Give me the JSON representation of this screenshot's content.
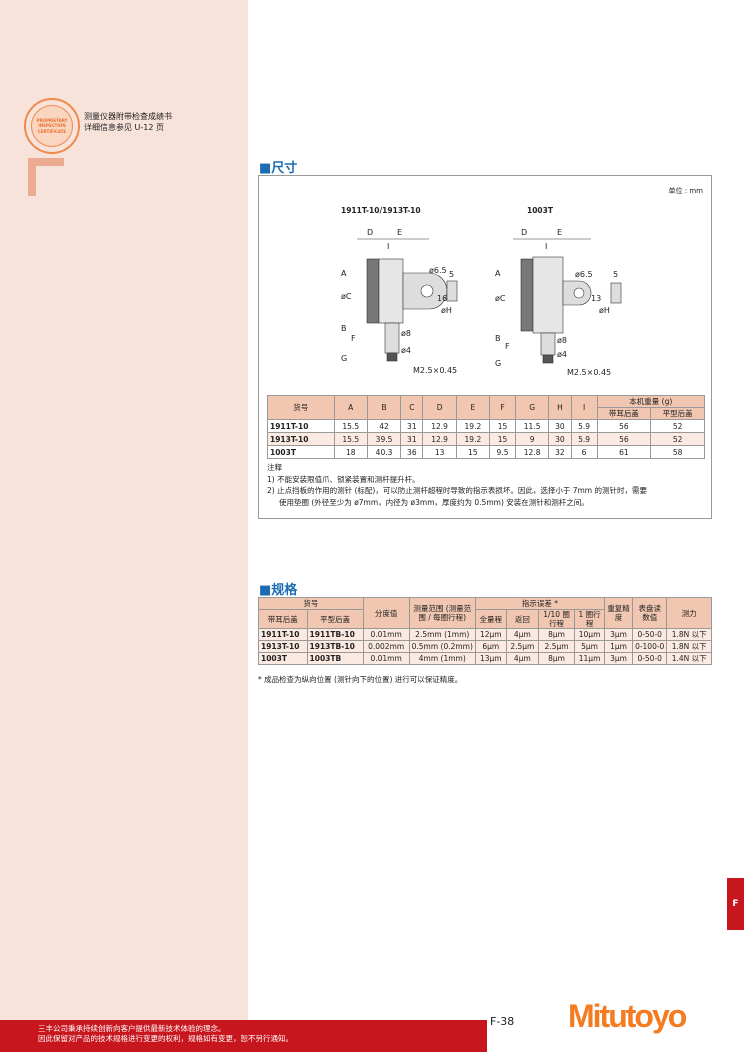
{
  "stamp": {
    "text": "PROPRIETARY INSPECTION CERTIFICATE",
    "line1": "测量仪器附带检查成绩书",
    "line2": "详细信息参见 U-12 页"
  },
  "dimensions": {
    "title": "■尺寸",
    "unit": "单位 : mm",
    "drawing1": {
      "title": "1911T-10/1913T-10",
      "labels": {
        "D": "D",
        "E": "E",
        "I": "I",
        "A": "A",
        "B": "B",
        "C": "øC",
        "F": "F",
        "G": "G",
        "H": "øH",
        "hole": "ø6.5",
        "h": "16",
        "w": "5",
        "stem": "ø8",
        "tip": "ø4",
        "thread": "M2.5×0.45"
      }
    },
    "drawing2": {
      "title": "1003T",
      "labels": {
        "D": "D",
        "E": "E",
        "I": "I",
        "A": "A",
        "B": "B",
        "C": "øC",
        "F": "F",
        "G": "G",
        "H": "øH",
        "hole": "ø6.5",
        "h": "13",
        "w": "5",
        "stem": "ø8",
        "tip": "ø4",
        "thread": "M2.5×0.45"
      }
    },
    "table": {
      "headers": [
        "货号",
        "A",
        "B",
        "C",
        "D",
        "E",
        "F",
        "G",
        "H",
        "I"
      ],
      "weight_header": "本机重量 (g)",
      "weight_sub": [
        "带耳后盖",
        "平型后盖"
      ],
      "rows": [
        [
          "1911T-10",
          "15.5",
          "42",
          "31",
          "12.9",
          "19.2",
          "15",
          "11.5",
          "30",
          "5.9",
          "56",
          "52"
        ],
        [
          "1913T-10",
          "15.5",
          "39.5",
          "31",
          "12.9",
          "19.2",
          "15",
          "9",
          "30",
          "5.9",
          "56",
          "52"
        ],
        [
          "1003T",
          "18",
          "40.3",
          "36",
          "13",
          "15",
          "9.5",
          "12.8",
          "32",
          "6",
          "61",
          "58"
        ]
      ]
    },
    "notes": {
      "title": "注释",
      "items": [
        "1) 不能安装限值爪、锁紧装置和测杆提升杆。",
        "2) 止点挡板的作用的测针 (标配)，可以防止测杆超程时导致的指示表损坏。因此，选择小于 7mm 的测针时，需要",
        "使用垫圈 (外径至少为 ø7mm，内径为 ø3mm，厚度约为 0.5mm) 安装在测针和测杆之间。"
      ]
    }
  },
  "specs": {
    "title": "■规格",
    "headers": {
      "part": "货号",
      "lug": "带耳后盖",
      "flat": "平型后盖",
      "grad": "分度值",
      "range": "测量范围 (测量范围 / 每圈行程)",
      "error": "指示误差 *",
      "full": "全量程",
      "ret": "返回",
      "tenth": "1/10 圈行程",
      "one": "1 圈行程",
      "rep": "重复精度",
      "dial": "表盘读数值",
      "force": "测力"
    },
    "rows": [
      [
        "1911T-10",
        "1911TB-10",
        "0.01mm",
        "2.5mm (1mm)",
        "12μm",
        "4μm",
        "8μm",
        "10μm",
        "3μm",
        "0-50-0",
        "1.8N 以下"
      ],
      [
        "1913T-10",
        "1913TB-10",
        "0.002mm",
        "0.5mm (0.2mm)",
        "6μm",
        "2.5μm",
        "2.5μm",
        "5μm",
        "1μm",
        "0-100-0",
        "1.8N 以下"
      ],
      [
        "1003T",
        "1003TB",
        "0.01mm",
        "4mm (1mm)",
        "13μm",
        "4μm",
        "8μm",
        "11μm",
        "3μm",
        "0-50-0",
        "1.4N 以下"
      ]
    ],
    "footnote": "* 成品检查为纵向位置 (测针向下的位置) 进行可以保证精度。"
  },
  "side_tab": "F",
  "footer": {
    "line1": "三丰公司秉承持续创新向客户提供最新技术体验的理念。",
    "line2": "因此保留对产品的技术规格进行变更的权利，规格如有变更，恕不另行通知。"
  },
  "page": "F-38",
  "logo": "Mitutoyo",
  "colors": {
    "panel": "#f7e3da",
    "header": "#f1c7b1",
    "accent_red": "#c8161e",
    "brand_orange": "#f47b20",
    "section_blue": "#1b6cb3"
  }
}
